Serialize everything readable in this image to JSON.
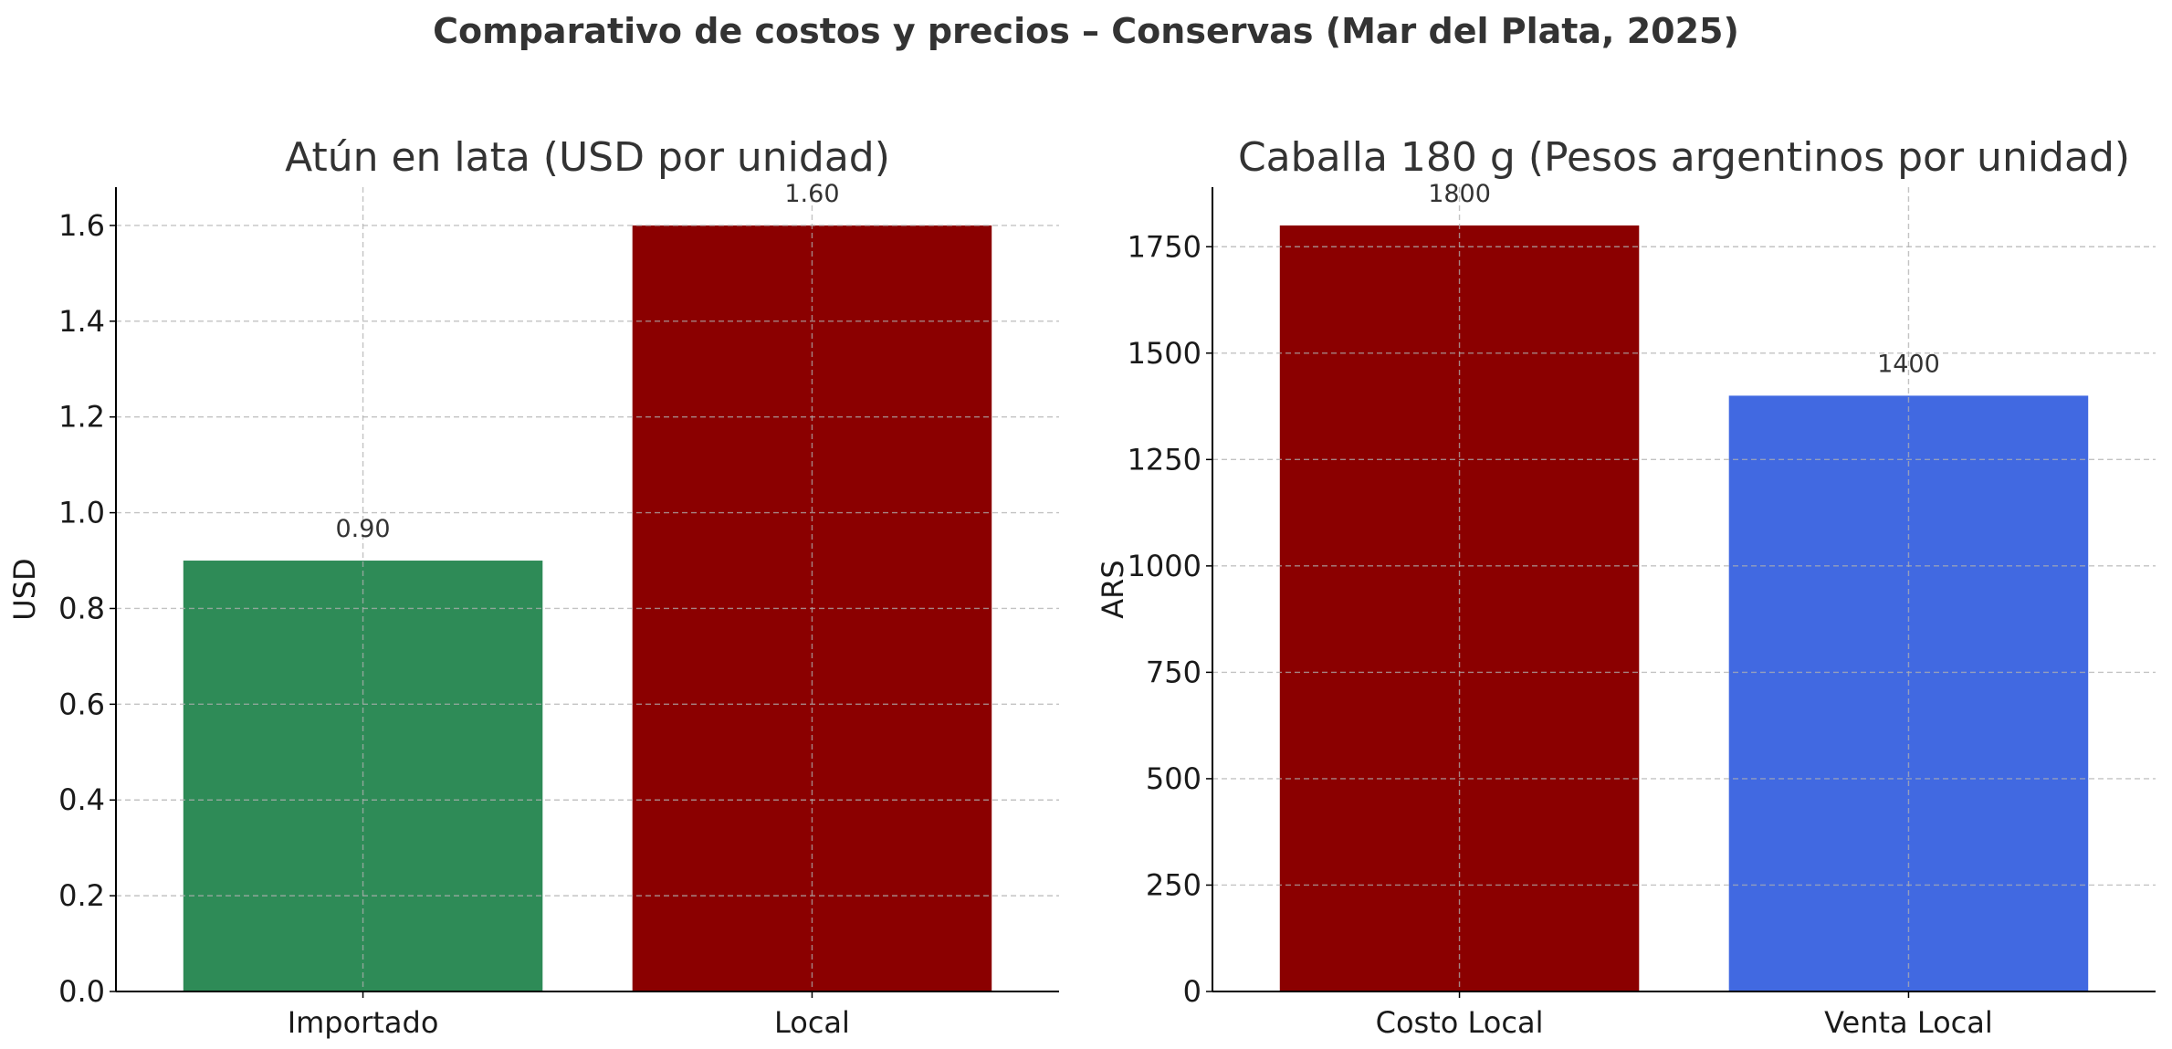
{
  "figure": {
    "title": "Comparativo de costos y precios – Conservas (Mar del Plata, 2025)"
  },
  "chart_data": [
    {
      "type": "bar",
      "title": "Atún en lata (USD por unidad)",
      "xlabel": "",
      "ylabel": "USD",
      "categories": [
        "Importado",
        "Local"
      ],
      "values": [
        0.9,
        1.6
      ],
      "value_labels": [
        "0.90",
        "1.60"
      ],
      "colors": [
        "#2e8b57",
        "#8b0000"
      ],
      "ylim": [
        0,
        1.68
      ],
      "yticks": [
        0,
        0.2,
        0.4,
        0.6,
        0.8,
        1.0,
        1.2,
        1.4,
        1.6
      ],
      "ytick_labels": [
        "0.0",
        "0.2",
        "0.4",
        "0.6",
        "0.8",
        "1.0",
        "1.2",
        "1.4",
        "1.6"
      ],
      "grid": true,
      "legend": "none"
    },
    {
      "type": "bar",
      "title": "Caballa 180 g (Pesos argentinos por unidad)",
      "xlabel": "",
      "ylabel": "ARS",
      "categories": [
        "Costo Local",
        "Venta Local"
      ],
      "values": [
        1800,
        1400
      ],
      "value_labels": [
        "1800",
        "1400"
      ],
      "colors": [
        "#8b0000",
        "#4169e1"
      ],
      "ylim": [
        0,
        1890
      ],
      "yticks": [
        0,
        250,
        500,
        750,
        1000,
        1250,
        1500,
        1750
      ],
      "ytick_labels": [
        "0",
        "250",
        "500",
        "750",
        "1000",
        "1250",
        "1500",
        "1750"
      ],
      "grid": true,
      "legend": "none"
    }
  ]
}
